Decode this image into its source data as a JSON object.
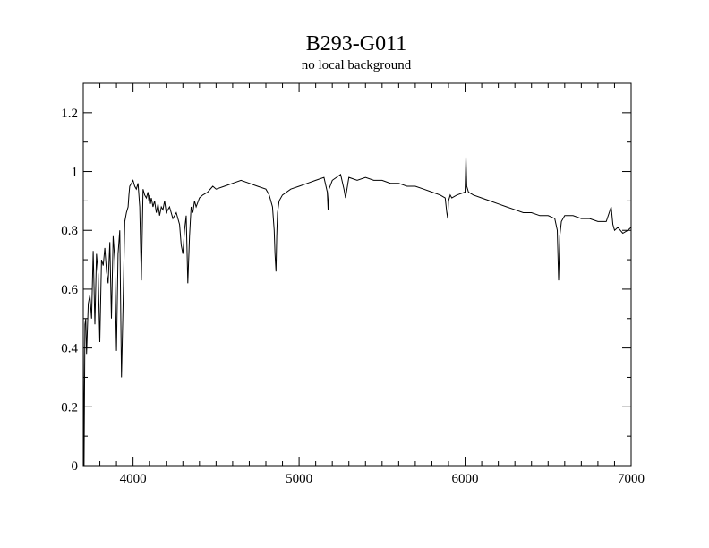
{
  "chart_data": {
    "type": "line",
    "title": "B293-G011",
    "subtitle": "no local background",
    "xlabel": "",
    "ylabel": "",
    "xlim": [
      3700,
      7000
    ],
    "ylim": [
      0,
      1.3
    ],
    "x_ticks": [
      4000,
      5000,
      6000,
      7000
    ],
    "x_tick_labels": [
      "4000",
      "5000",
      "6000",
      "7000"
    ],
    "y_ticks": [
      0,
      0.2,
      0.4,
      0.6,
      0.8,
      1.0,
      1.2
    ],
    "y_tick_labels": [
      "0",
      "0.2",
      "0.4",
      "0.6",
      "0.8",
      "1",
      "1.2"
    ],
    "grid": false,
    "legend": "none",
    "line_color": "#000000",
    "series": [
      {
        "x": [
          3700,
          3705,
          3710,
          3715,
          3720,
          3730,
          3740,
          3750,
          3760,
          3770,
          3780,
          3790,
          3800,
          3810,
          3820,
          3830,
          3840,
          3850,
          3860,
          3870,
          3880,
          3890,
          3900,
          3910,
          3920,
          3930,
          3940,
          3950,
          3960,
          3970,
          3975,
          3980,
          3990,
          4000,
          4010,
          4020,
          4030,
          4040,
          4050,
          4060,
          4070,
          4080,
          4090,
          4095,
          4100,
          4105,
          4110,
          4120,
          4130,
          4140,
          4150,
          4160,
          4170,
          4180,
          4190,
          4200,
          4220,
          4240,
          4260,
          4280,
          4290,
          4300,
          4310,
          4320,
          4330,
          4340,
          4350,
          4360,
          4370,
          4380,
          4400,
          4420,
          4450,
          4480,
          4500,
          4550,
          4600,
          4650,
          4700,
          4750,
          4800,
          4820,
          4840,
          4850,
          4855,
          4861,
          4865,
          4870,
          4880,
          4900,
          4950,
          5000,
          5050,
          5100,
          5150,
          5170,
          5175,
          5180,
          5200,
          5250,
          5270,
          5280,
          5300,
          5350,
          5400,
          5450,
          5500,
          5550,
          5600,
          5650,
          5700,
          5750,
          5800,
          5850,
          5880,
          5890,
          5895,
          5900,
          5910,
          5920,
          5950,
          6000,
          6005,
          6010,
          6020,
          6050,
          6100,
          6150,
          6200,
          6250,
          6300,
          6350,
          6400,
          6450,
          6500,
          6540,
          6555,
          6563,
          6570,
          6580,
          6600,
          6650,
          6700,
          6750,
          6800,
          6850,
          6880,
          6890,
          6900,
          6920,
          6950,
          6980,
          7000
        ],
        "y": [
          0.45,
          0.0,
          0.48,
          0.5,
          0.38,
          0.55,
          0.58,
          0.5,
          0.73,
          0.48,
          0.72,
          0.65,
          0.42,
          0.7,
          0.68,
          0.74,
          0.66,
          0.62,
          0.76,
          0.5,
          0.78,
          0.7,
          0.39,
          0.72,
          0.8,
          0.3,
          0.55,
          0.83,
          0.86,
          0.88,
          0.92,
          0.95,
          0.96,
          0.97,
          0.95,
          0.94,
          0.96,
          0.88,
          0.63,
          0.94,
          0.92,
          0.91,
          0.93,
          0.9,
          0.92,
          0.89,
          0.91,
          0.88,
          0.9,
          0.86,
          0.89,
          0.85,
          0.88,
          0.87,
          0.9,
          0.86,
          0.88,
          0.84,
          0.86,
          0.82,
          0.75,
          0.72,
          0.8,
          0.85,
          0.62,
          0.78,
          0.88,
          0.86,
          0.9,
          0.88,
          0.91,
          0.92,
          0.93,
          0.95,
          0.94,
          0.95,
          0.96,
          0.97,
          0.96,
          0.95,
          0.94,
          0.92,
          0.88,
          0.8,
          0.72,
          0.66,
          0.78,
          0.86,
          0.9,
          0.92,
          0.94,
          0.95,
          0.96,
          0.97,
          0.98,
          0.93,
          0.87,
          0.94,
          0.97,
          0.99,
          0.94,
          0.91,
          0.98,
          0.97,
          0.98,
          0.97,
          0.97,
          0.96,
          0.96,
          0.95,
          0.95,
          0.94,
          0.93,
          0.92,
          0.91,
          0.86,
          0.84,
          0.9,
          0.92,
          0.91,
          0.92,
          0.93,
          1.05,
          0.95,
          0.93,
          0.92,
          0.91,
          0.9,
          0.89,
          0.88,
          0.87,
          0.86,
          0.86,
          0.85,
          0.85,
          0.84,
          0.8,
          0.63,
          0.78,
          0.83,
          0.85,
          0.85,
          0.84,
          0.84,
          0.83,
          0.83,
          0.88,
          0.82,
          0.8,
          0.81,
          0.79,
          0.8,
          0.81
        ]
      }
    ]
  }
}
